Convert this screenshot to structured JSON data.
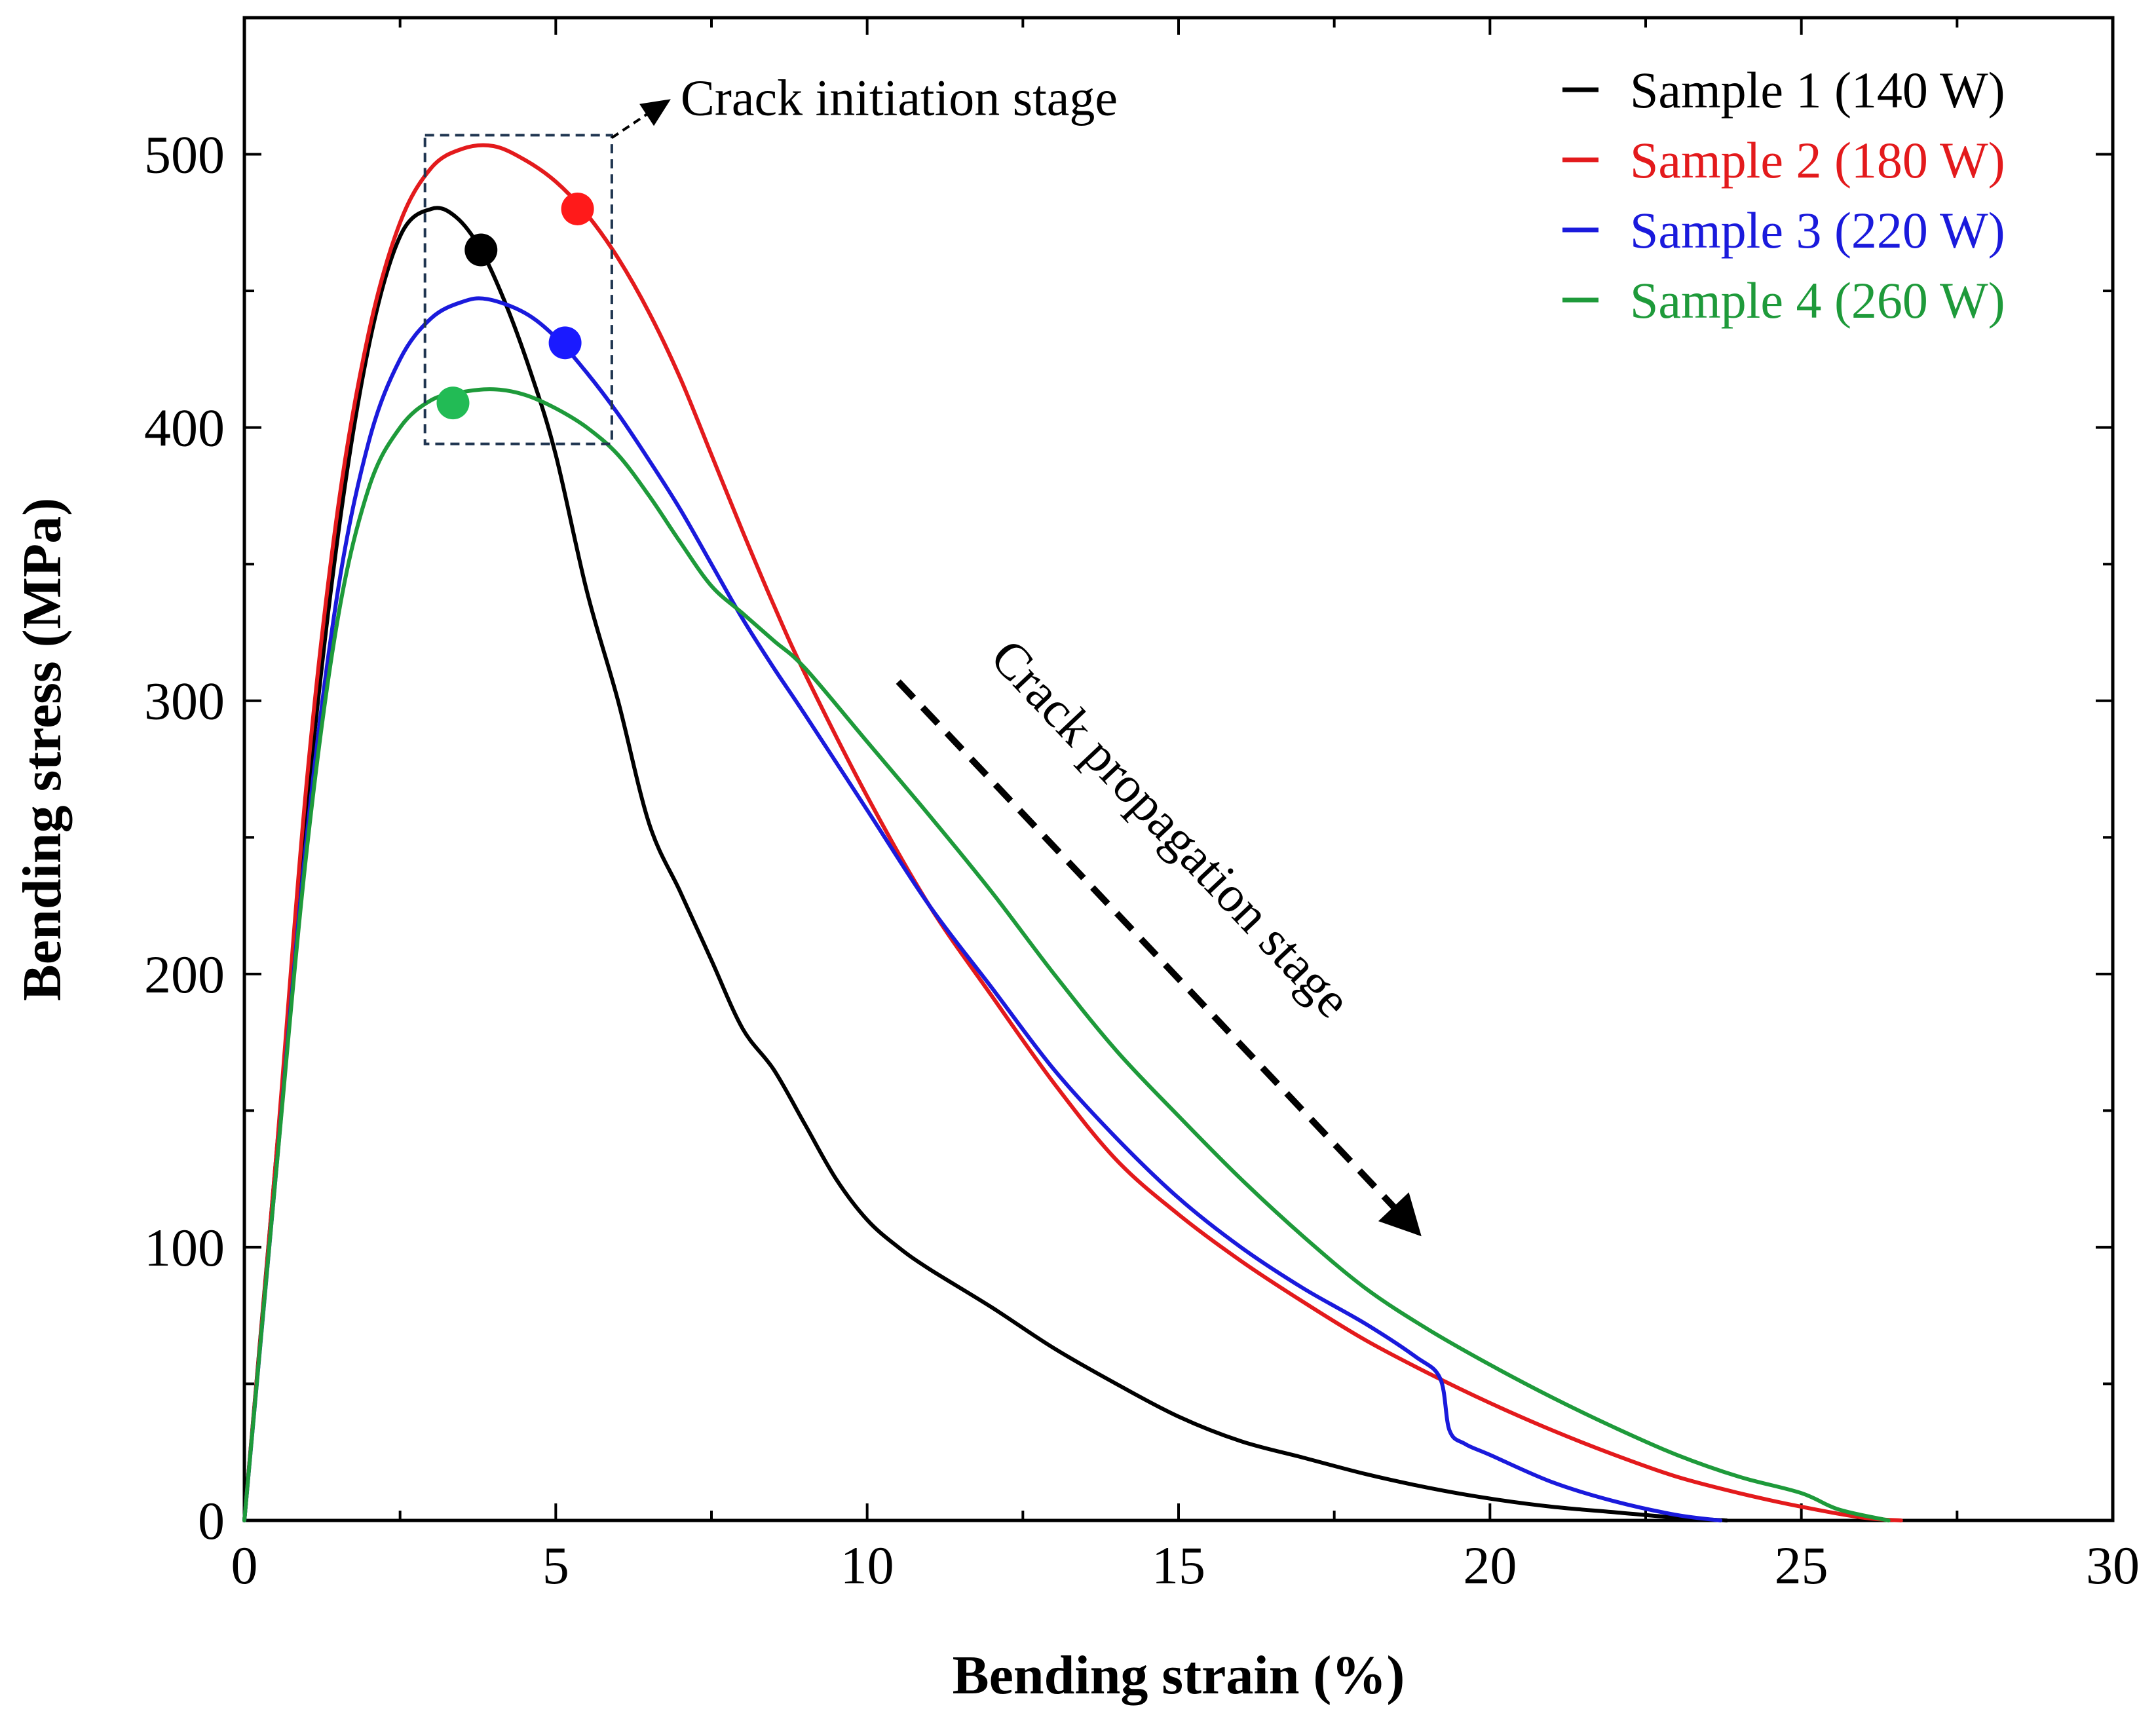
{
  "chart_data": {
    "type": "line",
    "title": "",
    "xlabel": "Bending strain (%)",
    "ylabel": "Bending stress (MPa)",
    "xlim": [
      0,
      30
    ],
    "ylim": [
      0,
      550
    ],
    "xticks": [
      0,
      5,
      10,
      15,
      20,
      25,
      30
    ],
    "yticks": [
      0,
      100,
      200,
      300,
      400,
      500
    ],
    "grid": false,
    "legend_position": "top-right",
    "series": [
      {
        "name": "Sample 1 (140 W)",
        "color": "#000000",
        "x": [
          0,
          0.5,
          1,
          1.5,
          2,
          2.5,
          3,
          3.4,
          3.8,
          4.2,
          4.6,
          5,
          5.5,
          6,
          6.5,
          7,
          7.5,
          8,
          8.5,
          9,
          9.5,
          10,
          10.5,
          11,
          12,
          13,
          14,
          15,
          16,
          17,
          18,
          19,
          20,
          21,
          22,
          23,
          23.8
        ],
        "y": [
          0,
          130,
          260,
          360,
          430,
          470,
          480,
          477,
          465,
          445,
          420,
          390,
          340,
          300,
          255,
          230,
          205,
          180,
          165,
          145,
          125,
          110,
          100,
          92,
          78,
          63,
          50,
          38,
          29,
          23,
          17,
          12,
          8,
          5,
          3,
          1,
          0
        ]
      },
      {
        "name": "Sample 2 (180 W)",
        "color": "#e31a1c",
        "x": [
          0,
          0.5,
          1,
          1.5,
          2,
          2.5,
          3,
          3.5,
          4,
          4.5,
          5,
          5.5,
          6,
          6.5,
          7,
          7.5,
          8,
          8.5,
          9,
          10,
          11,
          12,
          13,
          14,
          15,
          16,
          17,
          18,
          19,
          20,
          21,
          22,
          23,
          24,
          25,
          26,
          26.6
        ],
        "y": [
          0,
          130,
          270,
          370,
          435,
          475,
          495,
          502,
          503,
          498,
          490,
          478,
          462,
          442,
          418,
          390,
          362,
          335,
          310,
          265,
          225,
          192,
          160,
          132,
          112,
          95,
          80,
          66,
          54,
          43,
          33,
          24,
          16,
          10,
          5,
          1,
          0
        ]
      },
      {
        "name": "Sample 3 (220 W)",
        "color": "#1a1adc",
        "x": [
          0,
          0.5,
          1,
          1.5,
          2,
          2.5,
          3,
          3.5,
          3.9,
          4.5,
          5,
          5.5,
          6,
          6.5,
          7,
          7.5,
          8,
          8.5,
          9,
          10,
          11,
          12,
          13,
          14,
          15,
          16,
          17,
          18,
          18.8,
          19.2,
          19.35,
          19.6,
          20,
          21,
          22,
          23,
          23.7
        ],
        "y": [
          0,
          125,
          250,
          340,
          395,
          425,
          440,
          446,
          447,
          442,
          433,
          420,
          405,
          388,
          370,
          350,
          330,
          312,
          295,
          260,
          225,
          195,
          165,
          140,
          118,
          100,
          85,
          72,
          60,
          52,
          33,
          28,
          24,
          14,
          7,
          2,
          0
        ]
      },
      {
        "name": "Sample 4 (260 W)",
        "color": "#1e9a3a",
        "x": [
          0,
          0.5,
          1,
          1.5,
          2,
          2.5,
          3,
          3.5,
          4,
          4.5,
          5,
          5.5,
          6,
          6.5,
          7,
          7.5,
          8,
          8.5,
          9,
          10,
          11,
          12,
          13,
          14,
          15,
          16,
          17,
          18,
          19,
          20,
          21,
          22,
          23,
          24,
          25,
          25.6,
          26.4
        ],
        "y": [
          0,
          125,
          245,
          330,
          378,
          400,
          410,
          413,
          414,
          412,
          407,
          400,
          390,
          375,
          358,
          342,
          332,
          322,
          312,
          285,
          258,
          230,
          200,
          172,
          148,
          125,
          104,
          85,
          70,
          57,
          45,
          34,
          24,
          16,
          10,
          4,
          0
        ]
      }
    ],
    "markers": [
      {
        "series": "Sample 1 (140 W)",
        "x": 3.8,
        "y": 465,
        "color": "#000000"
      },
      {
        "series": "Sample 2 (180 W)",
        "x": 5.35,
        "y": 480,
        "color": "#ff1a1a"
      },
      {
        "series": "Sample 3 (220 W)",
        "x": 5.15,
        "y": 431,
        "color": "#1a1aff"
      },
      {
        "series": "Sample 4 (260 W)",
        "x": 3.35,
        "y": 409,
        "color": "#22bb55"
      }
    ],
    "annotations": [
      {
        "text": "Crack initiation stage",
        "type": "dashed-box",
        "box": {
          "x0": 2.9,
          "x1": 5.9,
          "y0": 394,
          "y1": 507
        }
      },
      {
        "text": "Crack propagation stage",
        "type": "dashed-arrow",
        "from": [
          10.5,
          307
        ],
        "to": [
          18.9,
          104
        ]
      }
    ]
  }
}
